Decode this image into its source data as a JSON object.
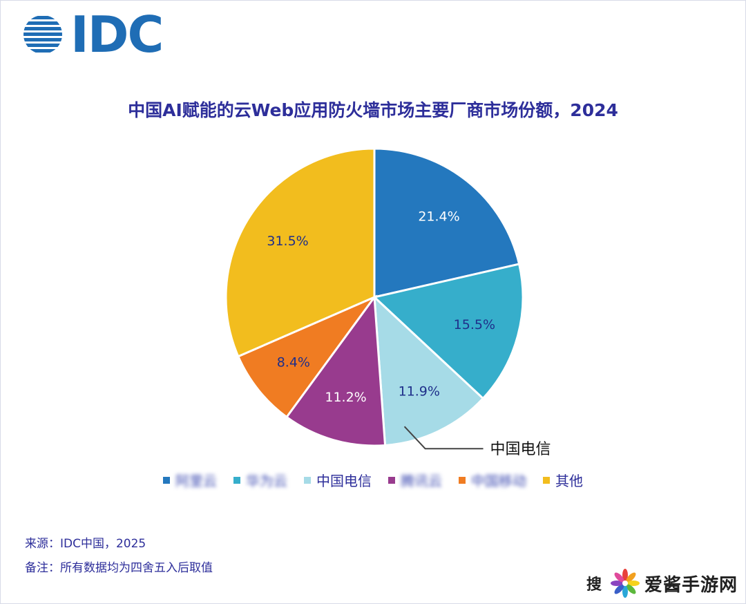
{
  "logo": {
    "text": "IDC"
  },
  "chart_data": {
    "type": "pie",
    "title": "中国AI赋能的云Web应用防火墙市场主要厂商市场份额，2024",
    "categories": [
      "阿里云",
      "华为云",
      "中国电信",
      "腾讯云",
      "中国移动",
      "其他"
    ],
    "values": [
      21.4,
      15.5,
      11.9,
      11.2,
      8.4,
      31.5
    ],
    "value_labels": [
      "21.4%",
      "15.5%",
      "11.9%",
      "11.2%",
      "8.4%",
      "31.5%"
    ],
    "colors": [
      "#2478be",
      "#36aecb",
      "#a6dbe7",
      "#983b8e",
      "#f07c22",
      "#f2bd1e"
    ],
    "label_colors": [
      "#ffffff",
      "#1f2f8a",
      "#1f2f8a",
      "#ffffff",
      "#1f2f8a",
      "#1f2f8a"
    ],
    "legend_blurred": [
      true,
      true,
      false,
      true,
      true,
      false
    ],
    "callout": {
      "category_index": 2,
      "text": "中国电信"
    },
    "legend_position": "bottom"
  },
  "footer": {
    "source": "来源：IDC中国，2025",
    "note": "备注：所有数据均为四舍五入后取值"
  },
  "watermark": {
    "prefix": "搜",
    "text": "爱酱手游网"
  }
}
